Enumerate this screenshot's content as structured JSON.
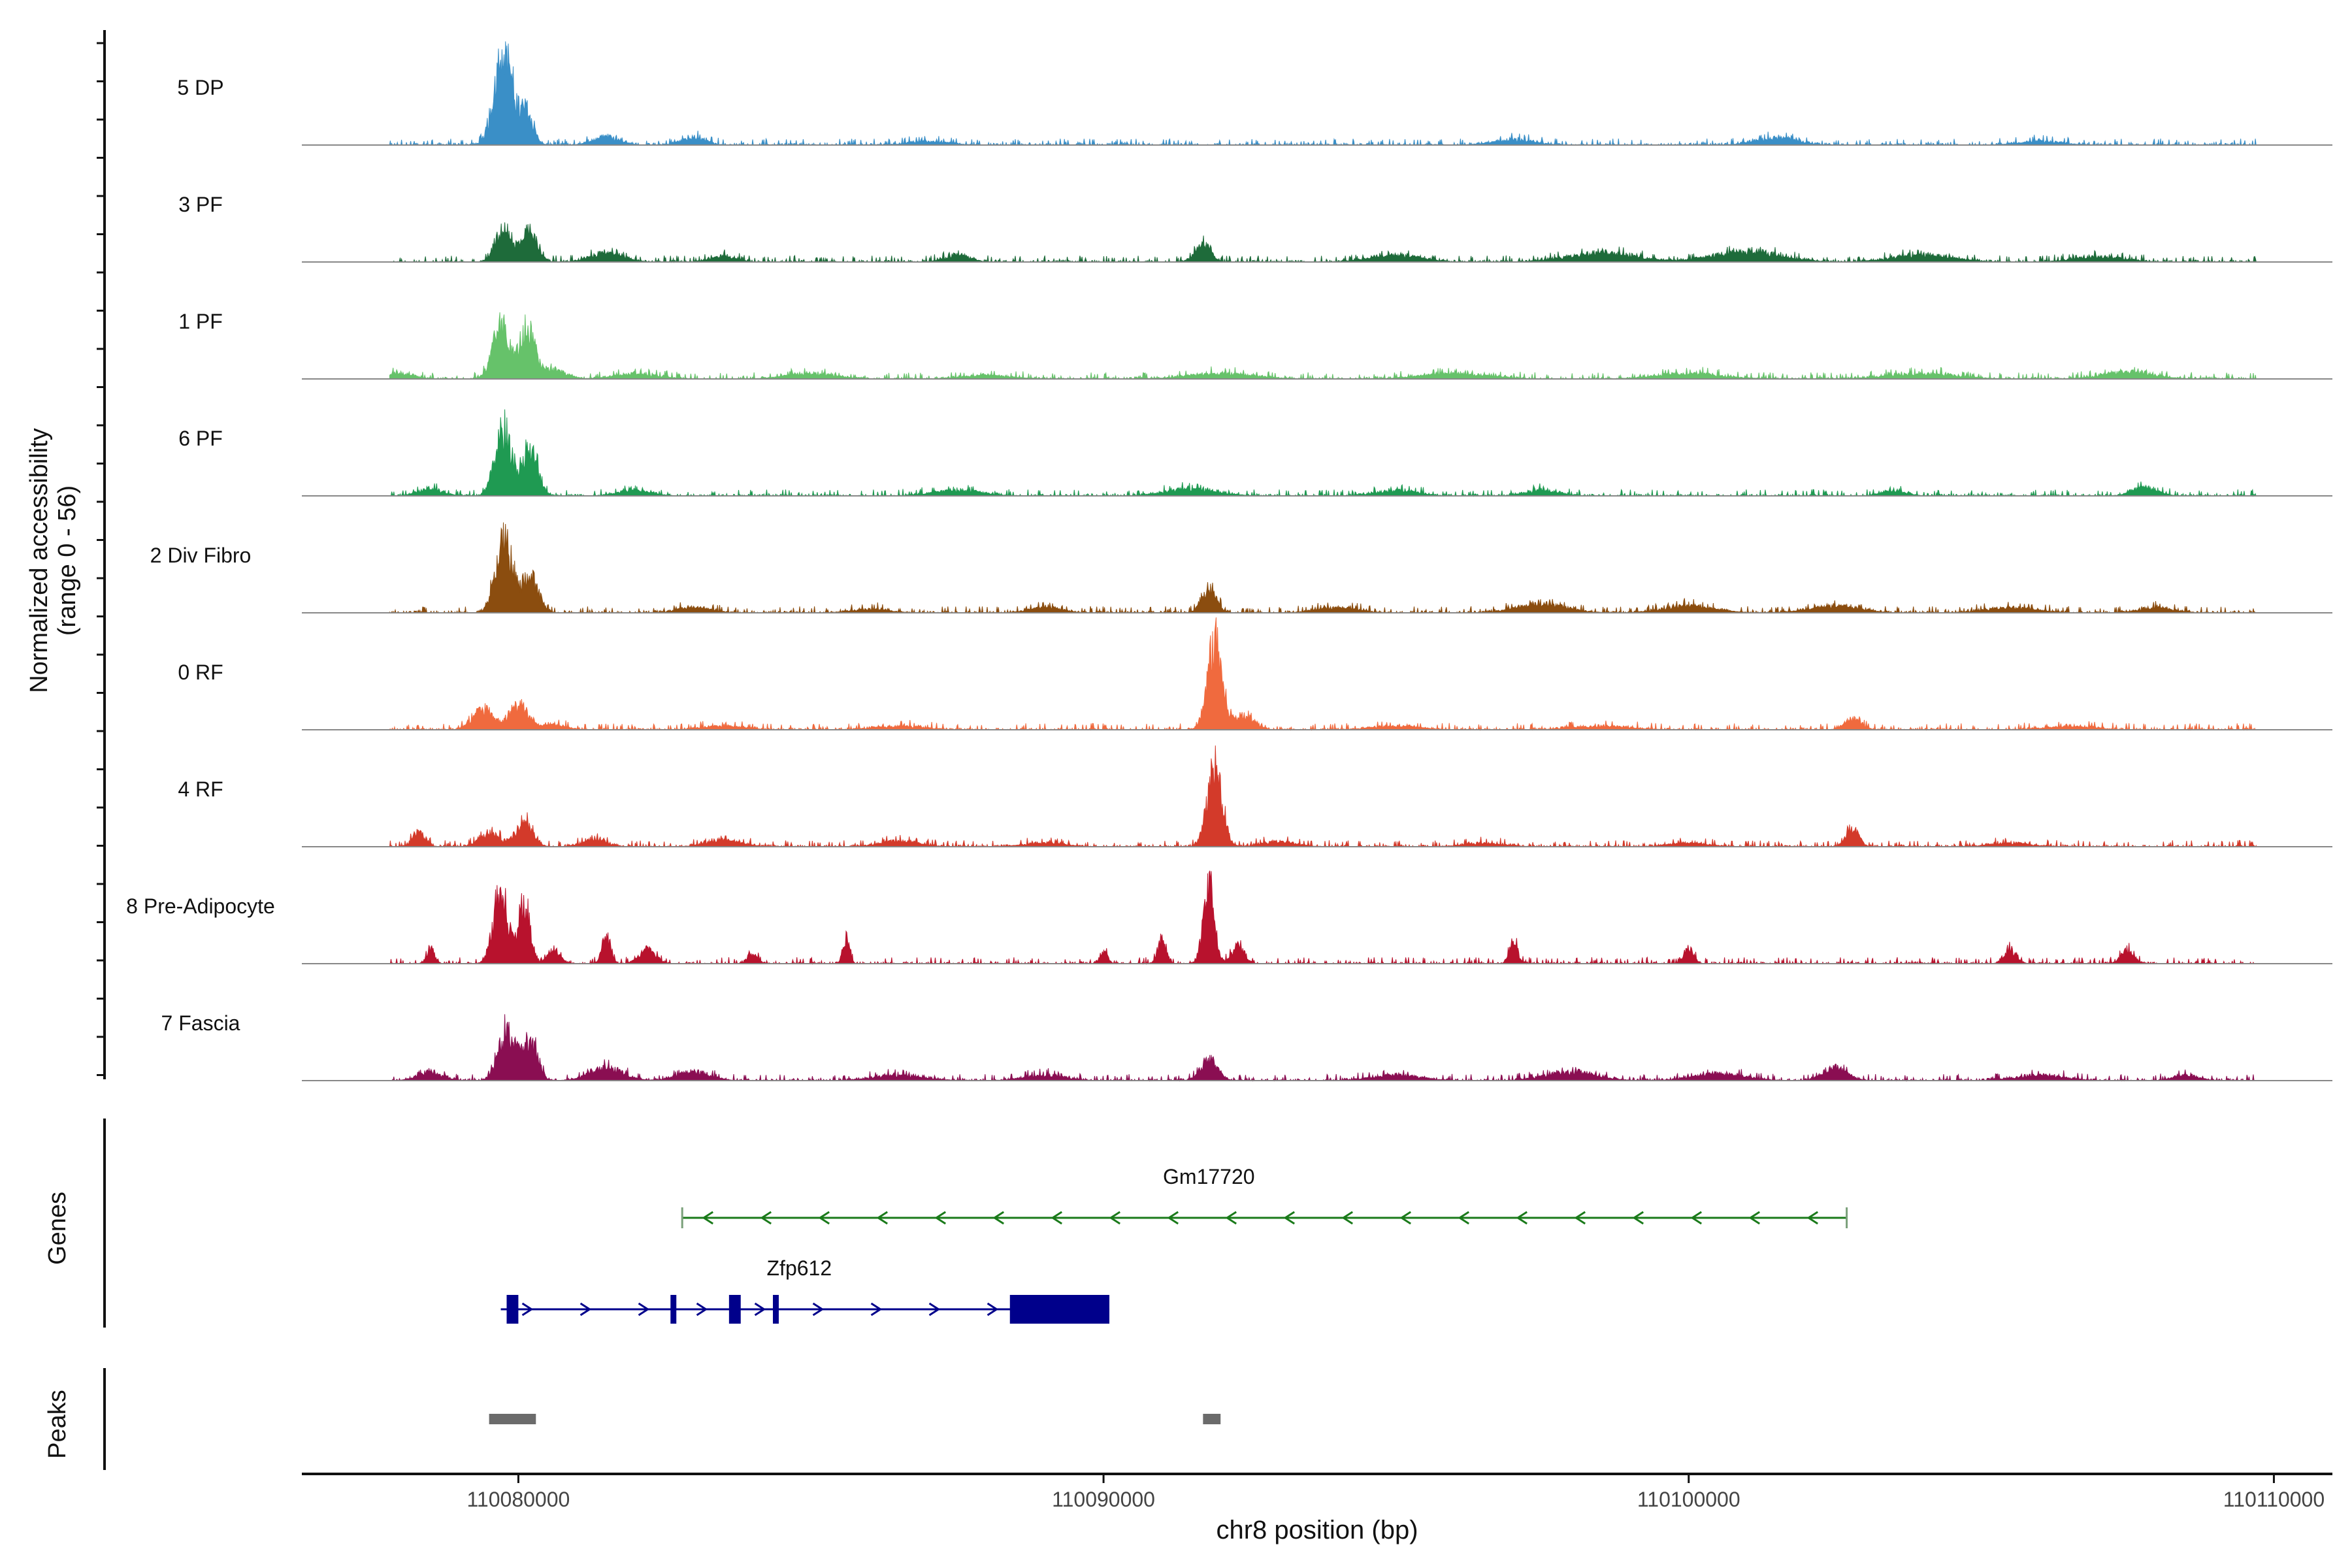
{
  "chart_data": {
    "type": "area",
    "title": "",
    "ylabel_line1": "Normalized accessibility",
    "ylabel_line2": "(range 0 - 56)",
    "yrange": [
      0,
      56
    ],
    "xlabel": "chr8 position (bp)",
    "xlim": [
      110076300,
      110111000
    ],
    "xticks": [
      110080000,
      110090000,
      110100000,
      110110000
    ],
    "xtick_labels": [
      "110080000",
      "110090000",
      "110100000",
      "110110000"
    ],
    "tracks": [
      {
        "name": "5 DP",
        "color": "#3a8fc7",
        "peaks": [
          [
            110079750,
            56,
            220
          ],
          [
            110080150,
            18,
            150
          ],
          [
            110081500,
            5,
            300
          ],
          [
            110083000,
            4,
            300
          ],
          [
            110087000,
            2,
            500
          ],
          [
            110097000,
            3,
            500
          ],
          [
            110101500,
            4,
            500
          ],
          [
            110106000,
            2,
            500
          ]
        ]
      },
      {
        "name": "3 PF",
        "color": "#1e6b3a",
        "peaks": [
          [
            110079750,
            20,
            200
          ],
          [
            110080200,
            18,
            180
          ],
          [
            110081500,
            5,
            400
          ],
          [
            110083500,
            3,
            300
          ],
          [
            110087500,
            4,
            300
          ],
          [
            110091700,
            10,
            180
          ],
          [
            110095000,
            4,
            600
          ],
          [
            110098500,
            5,
            800
          ],
          [
            110101000,
            6,
            800
          ],
          [
            110104000,
            4,
            700
          ],
          [
            110107000,
            3,
            600
          ]
        ]
      },
      {
        "name": "1 PF",
        "color": "#66c26a",
        "peaks": [
          [
            110079700,
            30,
            200
          ],
          [
            110080150,
            28,
            180
          ],
          [
            110080600,
            5,
            300
          ],
          [
            110078000,
            3,
            300
          ],
          [
            110082000,
            3,
            500
          ],
          [
            110085000,
            3,
            600
          ],
          [
            110088000,
            2,
            600
          ],
          [
            110092000,
            3,
            800
          ],
          [
            110096000,
            3,
            800
          ],
          [
            110100000,
            3,
            800
          ],
          [
            110104000,
            3,
            800
          ],
          [
            110107500,
            4,
            600
          ]
        ]
      },
      {
        "name": "6 PF",
        "color": "#1f9a52",
        "peaks": [
          [
            110079750,
            38,
            200
          ],
          [
            110080200,
            28,
            180
          ],
          [
            110078500,
            4,
            300
          ],
          [
            110082000,
            3,
            400
          ],
          [
            110087500,
            3,
            600
          ],
          [
            110091500,
            4,
            600
          ],
          [
            110095000,
            3,
            500
          ],
          [
            110097500,
            3,
            400
          ],
          [
            110103500,
            3,
            300
          ],
          [
            110107800,
            5,
            300
          ]
        ]
      },
      {
        "name": "2 Div Fibro",
        "color": "#8b4d0f",
        "peaks": [
          [
            110079750,
            42,
            200
          ],
          [
            110080200,
            20,
            200
          ],
          [
            110083000,
            3,
            400
          ],
          [
            110086000,
            2,
            500
          ],
          [
            110089000,
            3,
            400
          ],
          [
            110091800,
            14,
            180
          ],
          [
            110094000,
            3,
            500
          ],
          [
            110097500,
            5,
            600
          ],
          [
            110100000,
            4,
            600
          ],
          [
            110102500,
            4,
            600
          ],
          [
            110105500,
            3,
            600
          ],
          [
            110108000,
            3,
            400
          ]
        ]
      },
      {
        "name": "0 RF",
        "color": "#f06a3e",
        "peaks": [
          [
            110079400,
            12,
            250
          ],
          [
            110080000,
            14,
            220
          ],
          [
            110080600,
            3,
            300
          ],
          [
            110083500,
            2,
            500
          ],
          [
            110086500,
            2,
            600
          ],
          [
            110091900,
            50,
            180
          ],
          [
            110092400,
            8,
            250
          ],
          [
            110095000,
            2,
            600
          ],
          [
            110098500,
            2,
            700
          ],
          [
            110102800,
            6,
            200
          ],
          [
            110106500,
            2,
            600
          ]
        ]
      },
      {
        "name": "4 RF",
        "color": "#d33a2a",
        "peaks": [
          [
            110078300,
            8,
            150
          ],
          [
            110079500,
            8,
            250
          ],
          [
            110080100,
            14,
            200
          ],
          [
            110081300,
            4,
            300
          ],
          [
            110083500,
            4,
            400
          ],
          [
            110086500,
            3,
            500
          ],
          [
            110089000,
            2,
            500
          ],
          [
            110091900,
            44,
            180
          ],
          [
            110093000,
            3,
            400
          ],
          [
            110096500,
            2,
            500
          ],
          [
            110100000,
            2,
            500
          ],
          [
            110102800,
            10,
            150
          ],
          [
            110105500,
            2,
            500
          ]
        ]
      },
      {
        "name": "8 Pre-Adipocyte",
        "color": "#b8122d",
        "peaks": [
          [
            110078500,
            8,
            100
          ],
          [
            110079700,
            40,
            180
          ],
          [
            110080100,
            34,
            140
          ],
          [
            110080600,
            8,
            150
          ],
          [
            110081500,
            16,
            100
          ],
          [
            110082200,
            8,
            200
          ],
          [
            110084000,
            6,
            120
          ],
          [
            110085600,
            14,
            80
          ],
          [
            110090000,
            6,
            100
          ],
          [
            110091000,
            14,
            100
          ],
          [
            110091800,
            44,
            130
          ],
          [
            110092300,
            10,
            150
          ],
          [
            110097000,
            12,
            100
          ],
          [
            110100000,
            8,
            120
          ],
          [
            110105500,
            8,
            150
          ],
          [
            110107500,
            8,
            150
          ]
        ]
      },
      {
        "name": "7 Fascia",
        "color": "#8a0e52",
        "peaks": [
          [
            110079800,
            28,
            200
          ],
          [
            110080200,
            22,
            180
          ],
          [
            110078500,
            5,
            300
          ],
          [
            110081500,
            7,
            400
          ],
          [
            110083000,
            5,
            400
          ],
          [
            110086500,
            3,
            600
          ],
          [
            110089000,
            3,
            500
          ],
          [
            110091800,
            12,
            200
          ],
          [
            110095000,
            3,
            600
          ],
          [
            110098000,
            5,
            600
          ],
          [
            110100500,
            4,
            600
          ],
          [
            110102500,
            7,
            300
          ],
          [
            110106000,
            3,
            600
          ],
          [
            110108500,
            3,
            300
          ]
        ]
      }
    ],
    "genes_label": "Genes",
    "genes": [
      {
        "name": "Gm17720",
        "start": 110082800,
        "end": 110102700,
        "strand": "-",
        "color": "#1a7a1a",
        "exons": []
      },
      {
        "name": "Zfp612",
        "start": 110079700,
        "end": 110090100,
        "strand": "+",
        "color": "#00008b",
        "exons": [
          [
            110079800,
            110080000
          ],
          [
            110082600,
            110082700
          ],
          [
            110083600,
            110083800
          ],
          [
            110084350,
            110084450
          ],
          [
            110088400,
            110090100
          ]
        ]
      }
    ],
    "peaks_label": "Peaks",
    "peak_regions": [
      [
        110079500,
        110080300
      ],
      [
        110091700,
        110092000
      ]
    ]
  }
}
